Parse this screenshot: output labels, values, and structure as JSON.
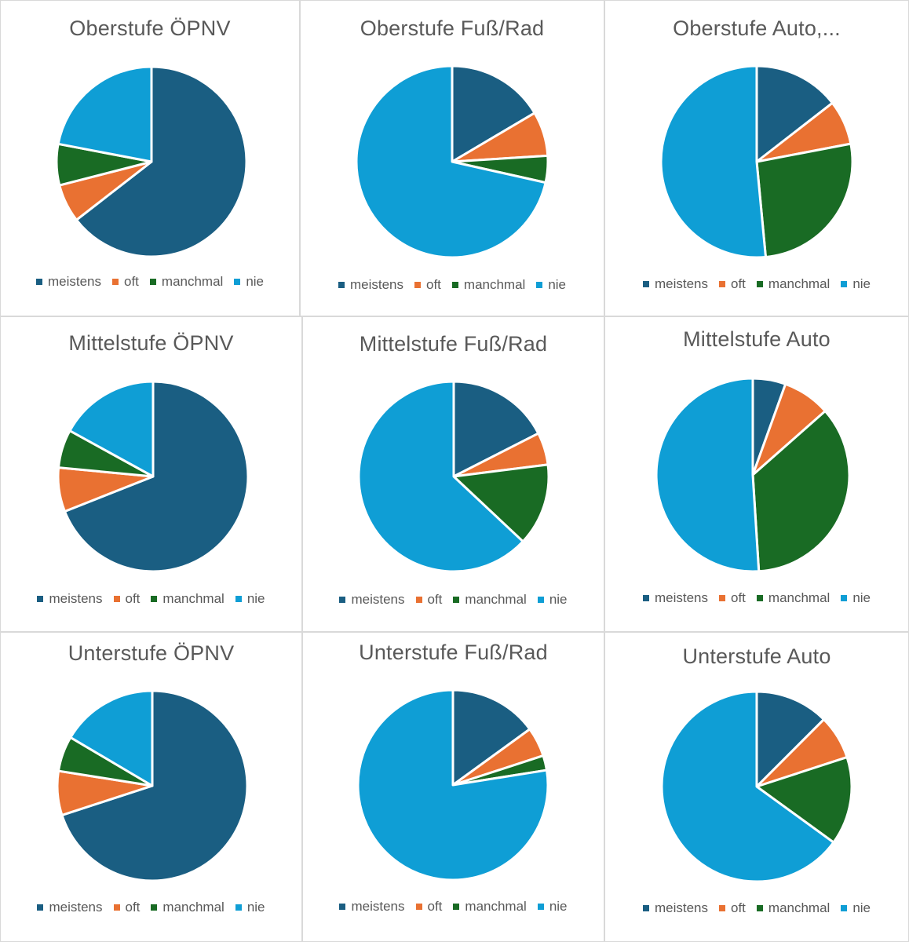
{
  "colors": {
    "meistens": "#1a5e82",
    "oft": "#e97132",
    "manchmal": "#196b24",
    "nie": "#0f9ed5"
  },
  "chart_data": [
    {
      "type": "pie",
      "title": "Oberstufe ÖPNV",
      "categories": [
        "meistens",
        "oft",
        "manchmal",
        "nie"
      ],
      "values": [
        64.5,
        6.5,
        7.0,
        22.0
      ]
    },
    {
      "type": "pie",
      "title": "Oberstufe Fuß/Rad",
      "categories": [
        "meistens",
        "oft",
        "manchmal",
        "nie"
      ],
      "values": [
        16.5,
        7.5,
        4.5,
        71.5
      ]
    },
    {
      "type": "pie",
      "title": "Oberstufe Auto,...",
      "categories": [
        "meistens",
        "oft",
        "manchmal",
        "nie"
      ],
      "values": [
        14.5,
        7.5,
        26.5,
        51.5
      ]
    },
    {
      "type": "pie",
      "title": "Mittelstufe ÖPNV",
      "categories": [
        "meistens",
        "oft",
        "manchmal",
        "nie"
      ],
      "values": [
        69.0,
        7.5,
        6.5,
        17.0
      ]
    },
    {
      "type": "pie",
      "title": "Mittelstufe Fuß/Rad",
      "categories": [
        "meistens",
        "oft",
        "manchmal",
        "nie"
      ],
      "values": [
        17.5,
        5.5,
        14.0,
        63.0
      ]
    },
    {
      "type": "pie",
      "title": "Mittelstufe Auto",
      "categories": [
        "meistens",
        "oft",
        "manchmal",
        "nie"
      ],
      "values": [
        5.5,
        8.0,
        35.5,
        51.0
      ]
    },
    {
      "type": "pie",
      "title": "Unterstufe ÖPNV",
      "categories": [
        "meistens",
        "oft",
        "manchmal",
        "nie"
      ],
      "values": [
        70.0,
        7.5,
        6.0,
        16.5
      ]
    },
    {
      "type": "pie",
      "title": "Unterstufe Fuß/Rad",
      "categories": [
        "meistens",
        "oft",
        "manchmal",
        "nie"
      ],
      "values": [
        15.0,
        5.0,
        2.5,
        77.5
      ]
    },
    {
      "type": "pie",
      "title": "Unterstufe Auto",
      "categories": [
        "meistens",
        "oft",
        "manchmal",
        "nie"
      ],
      "values": [
        12.5,
        7.5,
        15.0,
        65.0
      ]
    }
  ]
}
